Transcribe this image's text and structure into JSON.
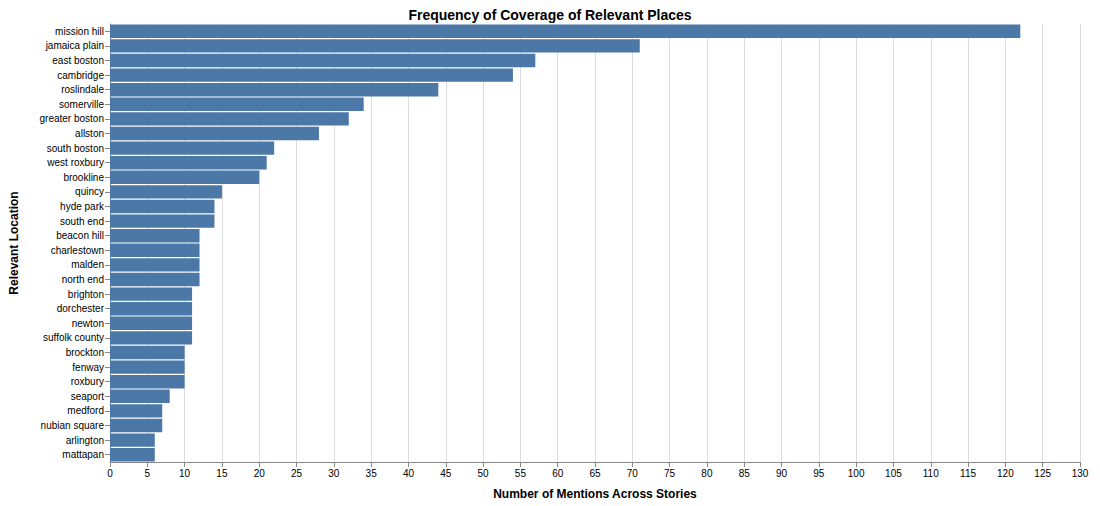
{
  "chart_data": {
    "type": "bar",
    "orientation": "horizontal",
    "title": "Frequency of Coverage of Relevant Places",
    "x_label": "Number of Mentions Across Stories",
    "y_label": "Relevant Location",
    "categories": [
      "mission hill",
      "jamaica plain",
      "east boston",
      "cambridge",
      "roslindale",
      "somerville",
      "greater boston",
      "allston",
      "south boston",
      "west roxbury",
      "brookline",
      "quincy",
      "hyde park",
      "south end",
      "beacon hill",
      "charlestown",
      "malden",
      "north end",
      "brighton",
      "dorchester",
      "newton",
      "suffolk county",
      "brockton",
      "fenway",
      "roxbury",
      "seaport",
      "medford",
      "nubian square",
      "arlington",
      "mattapan"
    ],
    "values": [
      122,
      71,
      57,
      54,
      44,
      34,
      32,
      28,
      22,
      21,
      20,
      15,
      14,
      14,
      12,
      12,
      12,
      12,
      11,
      11,
      11,
      11,
      10,
      10,
      10,
      8,
      7,
      7,
      6,
      6
    ],
    "color": "#4c78a8",
    "xlim": [
      0,
      130
    ],
    "xticks": [
      0,
      5,
      10,
      15,
      20,
      25,
      30,
      35,
      40,
      45,
      50,
      55,
      60,
      65,
      70,
      75,
      80,
      85,
      90,
      95,
      100,
      105,
      110,
      115,
      120,
      125,
      130
    ],
    "grid": true
  }
}
